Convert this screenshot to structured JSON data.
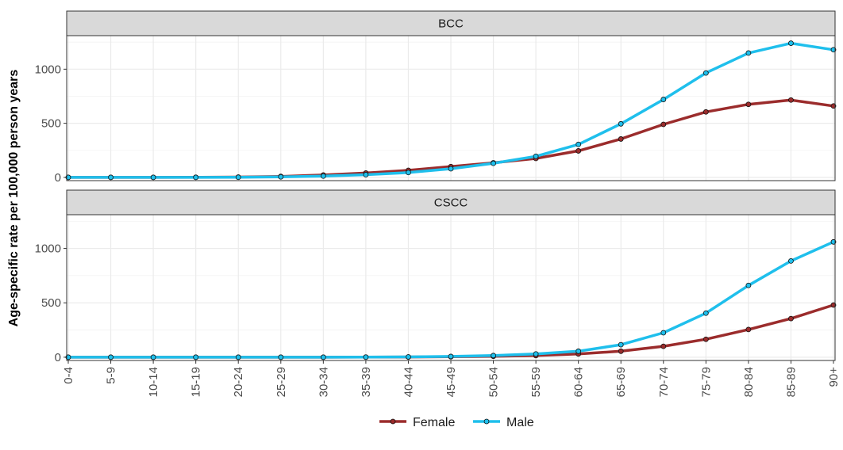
{
  "chart_data": {
    "type": "line",
    "ylabel": "Age-specific rate per 100,000 person years",
    "xlabel": "",
    "categories": [
      "0-4",
      "5-9",
      "10-14",
      "15-19",
      "20-24",
      "25-29",
      "30-34",
      "35-39",
      "40-44",
      "45-49",
      "50-54",
      "55-59",
      "60-64",
      "65-69",
      "70-74",
      "75-79",
      "80-84",
      "85-89",
      "90+"
    ],
    "y_ticks": [
      0,
      500,
      1000
    ],
    "ylim": [
      -30,
      1310
    ],
    "grid": true,
    "legend_position": "bottom",
    "colors": {
      "Female": "#9b2c2c",
      "Male": "#1fbfec"
    },
    "panels": [
      {
        "title": "BCC",
        "series": [
          {
            "name": "Female",
            "values": [
              0,
              0,
              0,
              1,
              3,
              9,
              22,
              40,
              65,
              100,
              135,
              175,
              245,
              355,
              490,
              605,
              675,
              715,
              660
            ]
          },
          {
            "name": "Male",
            "values": [
              0,
              0,
              0,
              0,
              1,
              5,
              12,
              25,
              45,
              80,
              130,
              195,
              305,
              495,
              720,
              965,
              1150,
              1240,
              1180
            ]
          }
        ]
      },
      {
        "title": "CSCC",
        "series": [
          {
            "name": "Female",
            "values": [
              0,
              0,
              0,
              0,
              0,
              0,
              0,
              1,
              2,
              4,
              8,
              15,
              30,
              55,
              100,
              165,
              255,
              355,
              480
            ]
          },
          {
            "name": "Male",
            "values": [
              0,
              0,
              0,
              0,
              0,
              0,
              0,
              1,
              3,
              7,
              15,
              30,
              55,
              115,
              225,
              405,
              660,
              885,
              1060
            ]
          }
        ]
      }
    ]
  }
}
